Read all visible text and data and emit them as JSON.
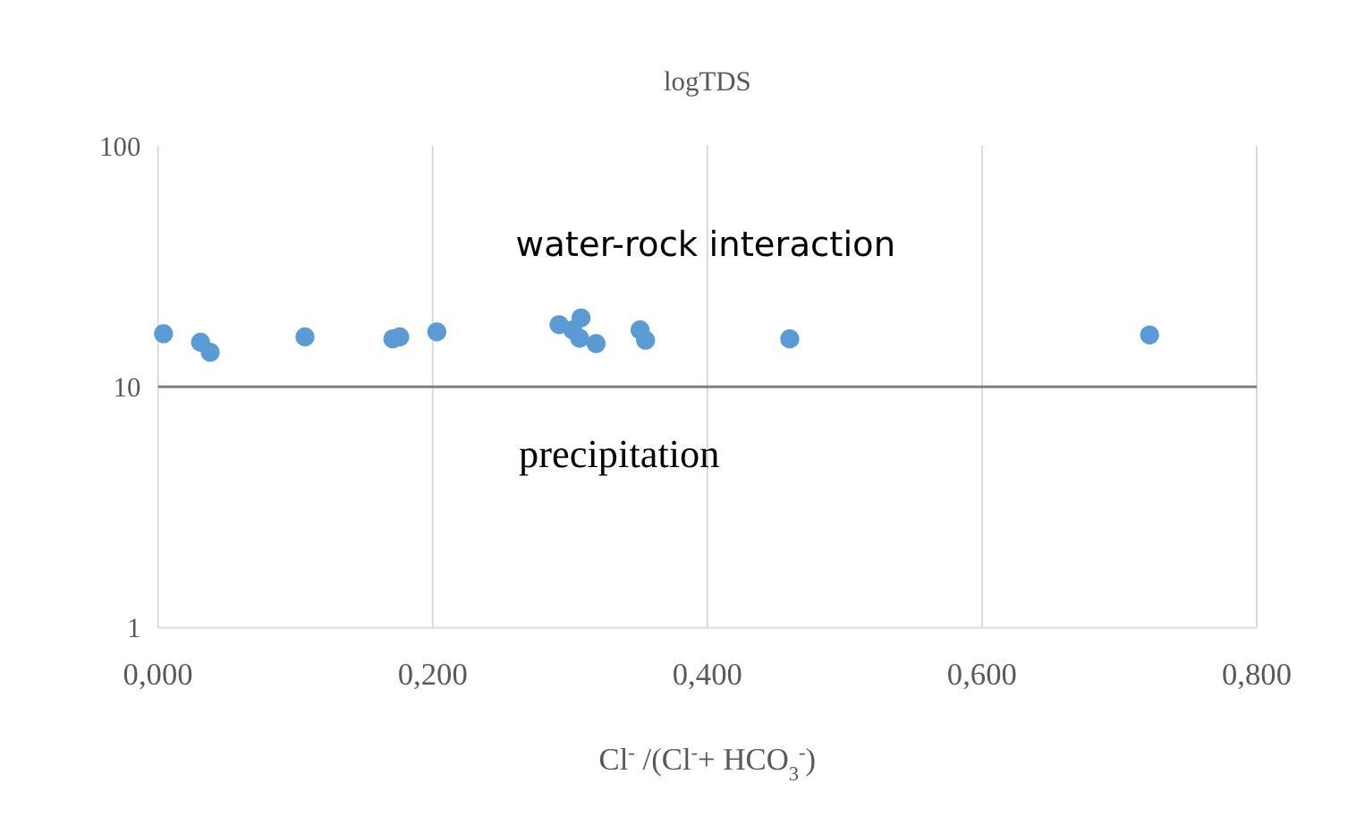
{
  "chart_data": {
    "type": "scatter",
    "title": "logTDS",
    "xlabel": "Cl$^{-}$ /(Cl$^{-}$+ HCO$_{3}$$^{-}$)",
    "x": [
      0.004,
      0.031,
      0.038,
      0.107,
      0.171,
      0.176,
      0.203,
      0.292,
      0.308,
      0.302,
      0.307,
      0.319,
      0.351,
      0.355,
      0.46,
      0.722
    ],
    "series": [
      {
        "color": "#5b9bd5",
        "values": [
          16.6,
          15.3,
          13.9,
          16.1,
          15.8,
          16.1,
          16.9,
          18.1,
          19.3,
          17.2,
          15.9,
          15.1,
          17.2,
          15.6,
          15.8,
          16.4
        ]
      }
    ],
    "xlim": [
      0,
      0.8
    ],
    "xticks": [
      {
        "value": 0,
        "label": "0,000"
      },
      {
        "value": 0.2,
        "label": "0,200"
      },
      {
        "value": 0.4,
        "label": "0,400"
      },
      {
        "value": 0.6,
        "label": "0,600"
      },
      {
        "value": 0.8,
        "label": "0,800"
      }
    ],
    "ylim": [
      1,
      100
    ],
    "yticks": [
      1,
      10,
      100
    ],
    "log": "y",
    "grid": "x",
    "marker": "circle",
    "ref_lines": [
      {
        "axis": "y",
        "value": 10,
        "color": "#7f7f7f"
      }
    ],
    "annotations": [
      "water-rock interaction",
      "precipitation"
    ]
  }
}
